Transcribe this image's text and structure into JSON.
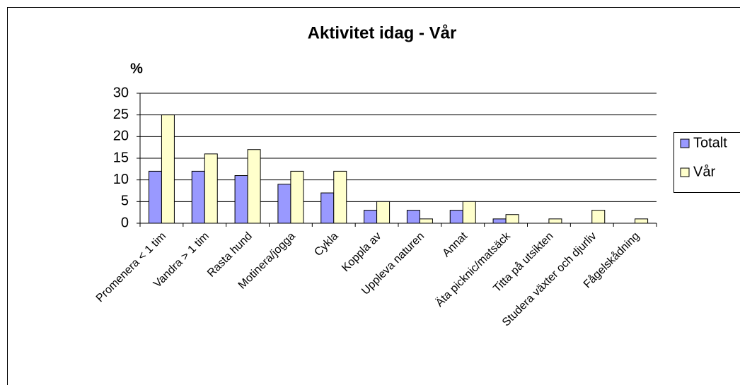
{
  "chart_data": {
    "type": "bar",
    "title": "Aktivitet idag - Vår",
    "y_label": "%",
    "categories": [
      "Promenera < 1 tim",
      "Vandra > 1 tim",
      "Rasta hund",
      "Motinera/jogga",
      "Cykla",
      "Koppla av",
      "Uppleva naturen",
      "Annat",
      "Äta picknic/matsäck",
      "Titta på utsikten",
      "Studera växter och djurliv",
      "Fågelskådning"
    ],
    "series": [
      {
        "name": "Totalt",
        "color": "#9999ff",
        "values": [
          12,
          12,
          11,
          9,
          7,
          3,
          3,
          3,
          1,
          0,
          0,
          0
        ]
      },
      {
        "name": "Vår",
        "color": "#ffffcc",
        "values": [
          25,
          16,
          17,
          12,
          12,
          5,
          1,
          5,
          2,
          1,
          3,
          1
        ]
      }
    ],
    "ylim": [
      0,
      30
    ],
    "yticks": [
      0,
      5,
      10,
      15,
      20,
      25,
      30
    ],
    "grid": true,
    "legend": "right"
  }
}
